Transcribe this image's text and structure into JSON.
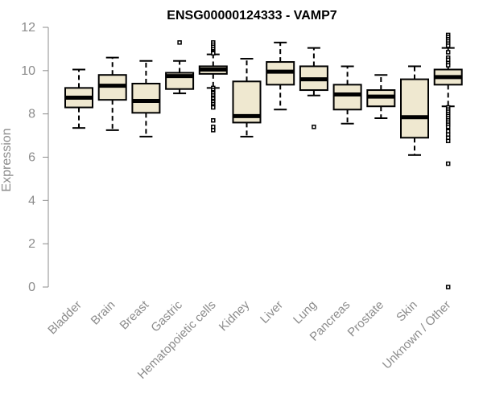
{
  "chart_data": {
    "type": "box",
    "title": "ENSG00000124333 - VAMP7",
    "xlabel": "",
    "ylabel": "Expression",
    "ylim": [
      0,
      12
    ],
    "yticks": [
      0,
      2,
      4,
      6,
      8,
      10,
      12
    ],
    "grid": false,
    "legend": "none",
    "colors": {
      "box_fill": "#efe8d0",
      "box_stroke": "#000000",
      "median": "#000000",
      "axis": "#8c8c8c",
      "title": "#000000"
    },
    "categories": [
      "Bladder",
      "Brain",
      "Breast",
      "Gastric",
      "Hematopoietic cells",
      "Kidney",
      "Liver",
      "Lung",
      "Pancreas",
      "Prostate",
      "Skin",
      "Unknown / Other"
    ],
    "boxes": [
      {
        "category": "Bladder",
        "whisker_low": 7.35,
        "q1": 8.3,
        "median": 8.75,
        "q3": 9.2,
        "whisker_high": 10.05,
        "outliers": []
      },
      {
        "category": "Brain",
        "whisker_low": 7.25,
        "q1": 8.65,
        "median": 9.3,
        "q3": 9.8,
        "whisker_high": 10.6,
        "outliers": []
      },
      {
        "category": "Breast",
        "whisker_low": 6.95,
        "q1": 8.05,
        "median": 8.6,
        "q3": 9.4,
        "whisker_high": 10.45,
        "outliers": []
      },
      {
        "category": "Gastric",
        "whisker_low": 8.95,
        "q1": 9.15,
        "median": 9.75,
        "q3": 9.9,
        "whisker_high": 10.45,
        "outliers": [
          11.3
        ]
      },
      {
        "category": "Hematopoietic cells",
        "whisker_low": 9.2,
        "q1": 9.85,
        "median": 10.05,
        "q3": 10.2,
        "whisker_high": 10.75,
        "outliers": [
          11.3,
          11.2,
          11.1,
          11.0,
          10.9,
          10.85,
          10.8,
          9.2,
          9.1,
          9.0,
          8.95,
          8.85,
          8.75,
          8.7,
          8.6,
          8.55,
          8.45,
          8.35,
          8.3,
          7.7,
          7.4,
          7.25
        ]
      },
      {
        "category": "Kidney",
        "whisker_low": 6.95,
        "q1": 7.6,
        "median": 7.9,
        "q3": 9.5,
        "whisker_high": 10.55,
        "outliers": []
      },
      {
        "category": "Liver",
        "whisker_low": 8.2,
        "q1": 9.35,
        "median": 9.95,
        "q3": 10.4,
        "whisker_high": 11.3,
        "outliers": []
      },
      {
        "category": "Lung",
        "whisker_low": 8.85,
        "q1": 9.1,
        "median": 9.6,
        "q3": 10.2,
        "whisker_high": 11.05,
        "outliers": [
          7.4
        ]
      },
      {
        "category": "Pancreas",
        "whisker_low": 7.55,
        "q1": 8.2,
        "median": 8.9,
        "q3": 9.35,
        "whisker_high": 10.2,
        "outliers": []
      },
      {
        "category": "Prostate",
        "whisker_low": 7.8,
        "q1": 8.35,
        "median": 8.8,
        "q3": 9.1,
        "whisker_high": 9.8,
        "outliers": []
      },
      {
        "category": "Skin",
        "whisker_low": 6.1,
        "q1": 6.9,
        "median": 7.85,
        "q3": 9.6,
        "whisker_high": 10.2,
        "outliers": []
      },
      {
        "category": "Unknown / Other",
        "whisker_low": 8.35,
        "q1": 9.35,
        "median": 9.7,
        "q3": 10.05,
        "whisker_high": 11.05,
        "outliers": [
          11.65,
          11.55,
          11.45,
          11.35,
          11.25,
          11.15,
          10.85,
          10.6,
          10.5,
          10.35,
          10.25,
          8.3,
          8.2,
          8.1,
          8.0,
          7.9,
          7.8,
          7.7,
          7.6,
          7.5,
          7.4,
          7.2,
          7.05,
          6.9,
          6.75,
          5.7,
          0.0
        ]
      }
    ]
  }
}
